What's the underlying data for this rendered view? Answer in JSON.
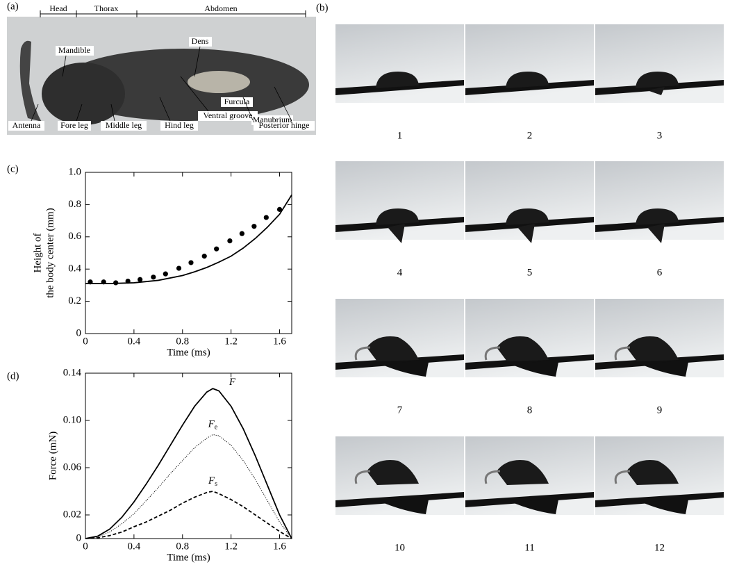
{
  "panel_labels": [
    "(a)",
    "(b)",
    "(c)",
    "(d)"
  ],
  "photo": {
    "segments": [
      "Head",
      "Thorax",
      "Abdomen"
    ],
    "labels": [
      "Mandible",
      "Dens",
      "Furcula",
      "Manubrium",
      "Antenna",
      "Fore leg",
      "Middle leg",
      "Hind leg",
      "Ventral groove",
      "Posterior hinge"
    ]
  },
  "frames": [
    "1",
    "2",
    "3",
    "4",
    "5",
    "6",
    "7",
    "8",
    "9",
    "10",
    "11",
    "12"
  ],
  "chart_data": [
    {
      "type": "line",
      "ylabel": [
        "Height of",
        "the body center (mm)"
      ],
      "xlabel": "Time (ms)",
      "xlim": [
        0,
        1.7
      ],
      "ylim": [
        0,
        1
      ],
      "xticks": [
        0,
        0.4,
        0.8,
        1.2,
        1.6
      ],
      "yticks": [
        0,
        0.2,
        0.4,
        0.6,
        0.8,
        {
          "value": 1,
          "label": "1.0"
        }
      ],
      "series": [
        {
          "style": "markers",
          "color": "#000000",
          "x": [
            0.04,
            0.15,
            0.25,
            0.35,
            0.45,
            0.56,
            0.66,
            0.77,
            0.87,
            0.98,
            1.08,
            1.19,
            1.29,
            1.39,
            1.49,
            1.6
          ],
          "values": [
            0.32,
            0.32,
            0.315,
            0.325,
            0.335,
            0.35,
            0.37,
            0.405,
            0.44,
            0.48,
            0.525,
            0.575,
            0.62,
            0.665,
            0.72,
            0.77
          ]
        },
        {
          "style": "solid",
          "color": "#000000",
          "x": [
            0,
            0.2,
            0.4,
            0.6,
            0.8,
            0.9,
            1.0,
            1.1,
            1.2,
            1.3,
            1.4,
            1.5,
            1.6,
            1.7
          ],
          "values": [
            0.31,
            0.31,
            0.315,
            0.33,
            0.36,
            0.383,
            0.41,
            0.443,
            0.48,
            0.53,
            0.59,
            0.66,
            0.74,
            0.86
          ]
        }
      ]
    },
    {
      "type": "line",
      "ylabel": [
        "Force (mN)"
      ],
      "xlabel": "Time (ms)",
      "xlim": [
        0,
        1.7
      ],
      "ylim": [
        0,
        0.14
      ],
      "xticks": [
        0,
        0.4,
        0.8,
        1.2,
        1.6
      ],
      "yticks": [
        0,
        0.02,
        0.06,
        {
          "value": 0.1,
          "label": "0.10"
        },
        0.14
      ],
      "series": [
        {
          "name": "F",
          "style": "solid",
          "color": "#000000",
          "x": [
            0,
            0.1,
            0.2,
            0.3,
            0.4,
            0.5,
            0.6,
            0.7,
            0.8,
            0.9,
            1.0,
            1.05,
            1.1,
            1.2,
            1.3,
            1.4,
            1.5,
            1.6,
            1.7
          ],
          "values": [
            0,
            0.002,
            0.008,
            0.018,
            0.031,
            0.046,
            0.062,
            0.079,
            0.096,
            0.112,
            0.124,
            0.127,
            0.125,
            0.112,
            0.093,
            0.07,
            0.045,
            0.02,
            0
          ]
        },
        {
          "name": "F",
          "subscript": "e",
          "style": "dotted",
          "color": "#000000",
          "x": [
            0,
            0.1,
            0.2,
            0.3,
            0.4,
            0.5,
            0.6,
            0.7,
            0.8,
            0.9,
            1.0,
            1.05,
            1.1,
            1.2,
            1.3,
            1.4,
            1.5,
            1.6,
            1.7
          ],
          "values": [
            0,
            0.0014,
            0.0055,
            0.0125,
            0.021,
            0.032,
            0.043,
            0.055,
            0.066,
            0.077,
            0.085,
            0.088,
            0.087,
            0.079,
            0.066,
            0.05,
            0.032,
            0.014,
            0
          ]
        },
        {
          "name": "F",
          "subscript": "s",
          "style": "dashed",
          "color": "#000000",
          "x": [
            0,
            0.1,
            0.2,
            0.3,
            0.4,
            0.5,
            0.6,
            0.7,
            0.8,
            0.9,
            1.0,
            1.05,
            1.1,
            1.2,
            1.3,
            1.4,
            1.5,
            1.6,
            1.7
          ],
          "values": [
            0,
            0.0006,
            0.0025,
            0.0055,
            0.01,
            0.014,
            0.019,
            0.024,
            0.03,
            0.035,
            0.039,
            0.04,
            0.038,
            0.033,
            0.027,
            0.02,
            0.013,
            0.006,
            0
          ]
        }
      ]
    }
  ]
}
